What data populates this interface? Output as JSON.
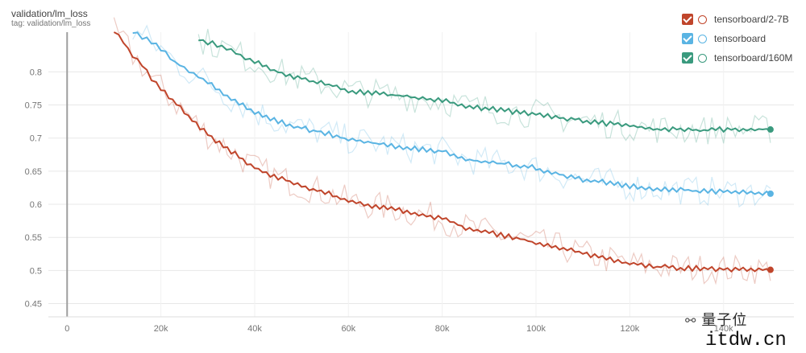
{
  "chart_data": {
    "type": "line",
    "title": "validation/lm_loss",
    "subtitle": "tag: validation/lm_loss",
    "xlabel": "",
    "ylabel": "",
    "xlim": [
      -4000,
      155000
    ],
    "ylim": [
      0.43,
      0.86
    ],
    "x_ticks": [
      0,
      20000,
      40000,
      60000,
      80000,
      100000,
      120000,
      140000
    ],
    "x_tick_labels": [
      "0",
      "20k",
      "40k",
      "60k",
      "80k",
      "100k",
      "120k",
      "140k"
    ],
    "y_ticks": [
      0.45,
      0.5,
      0.55,
      0.6,
      0.65,
      0.7,
      0.75,
      0.8
    ],
    "y_tick_labels": [
      "0.45",
      "0.5",
      "0.55",
      "0.6",
      "0.65",
      "0.7",
      "0.75",
      "0.8"
    ],
    "grid": true,
    "legend_position": "top-right",
    "series": [
      {
        "name": "tensorboard/2-7B",
        "color": "#c0452b",
        "x": [
          10000,
          12000,
          14000,
          16000,
          18000,
          20000,
          25000,
          30000,
          35000,
          40000,
          45000,
          50000,
          55000,
          60000,
          65000,
          70000,
          75000,
          80000,
          85000,
          90000,
          95000,
          100000,
          105000,
          110000,
          115000,
          120000,
          125000,
          130000,
          135000,
          140000,
          145000,
          150000
        ],
        "values": [
          0.86,
          0.845,
          0.825,
          0.81,
          0.79,
          0.775,
          0.74,
          0.705,
          0.68,
          0.655,
          0.64,
          0.628,
          0.618,
          0.605,
          0.598,
          0.593,
          0.585,
          0.578,
          0.565,
          0.557,
          0.55,
          0.542,
          0.535,
          0.525,
          0.517,
          0.51,
          0.506,
          0.504,
          0.503,
          0.502,
          0.502,
          0.501
        ]
      },
      {
        "name": "tensorboard",
        "color": "#5ab4e3",
        "x": [
          14000,
          17000,
          20000,
          23000,
          26000,
          30000,
          35000,
          40000,
          45000,
          50000,
          55000,
          60000,
          65000,
          70000,
          75000,
          80000,
          85000,
          90000,
          95000,
          100000,
          105000,
          110000,
          115000,
          120000,
          125000,
          130000,
          135000,
          140000,
          145000,
          150000
        ],
        "values": [
          0.86,
          0.85,
          0.835,
          0.815,
          0.8,
          0.785,
          0.76,
          0.74,
          0.725,
          0.715,
          0.708,
          0.698,
          0.693,
          0.687,
          0.683,
          0.68,
          0.668,
          0.663,
          0.66,
          0.655,
          0.645,
          0.637,
          0.633,
          0.627,
          0.624,
          0.622,
          0.62,
          0.619,
          0.618,
          0.616
        ]
      },
      {
        "name": "tensorboard/160M",
        "color": "#3a9a7e",
        "x": [
          28000,
          32000,
          36000,
          40000,
          45000,
          50000,
          55000,
          60000,
          65000,
          70000,
          75000,
          80000,
          85000,
          90000,
          95000,
          100000,
          105000,
          110000,
          115000,
          120000,
          125000,
          130000,
          135000,
          140000,
          145000,
          150000
        ],
        "values": [
          0.85,
          0.84,
          0.828,
          0.815,
          0.8,
          0.79,
          0.782,
          0.772,
          0.768,
          0.765,
          0.76,
          0.757,
          0.748,
          0.744,
          0.74,
          0.737,
          0.73,
          0.727,
          0.722,
          0.718,
          0.714,
          0.713,
          0.712,
          0.713,
          0.713,
          0.713
        ]
      }
    ]
  },
  "legend": {
    "items": [
      {
        "label": "tensorboard/2-7B",
        "color": "#c0452b"
      },
      {
        "label": "tensorboard",
        "color": "#5ab4e3"
      },
      {
        "label": "tensorboard/160M",
        "color": "#3a9a7e"
      }
    ]
  },
  "watermark": {
    "icon": "wechat-icon",
    "text": "量子位"
  },
  "site_text": "itdw.cn"
}
